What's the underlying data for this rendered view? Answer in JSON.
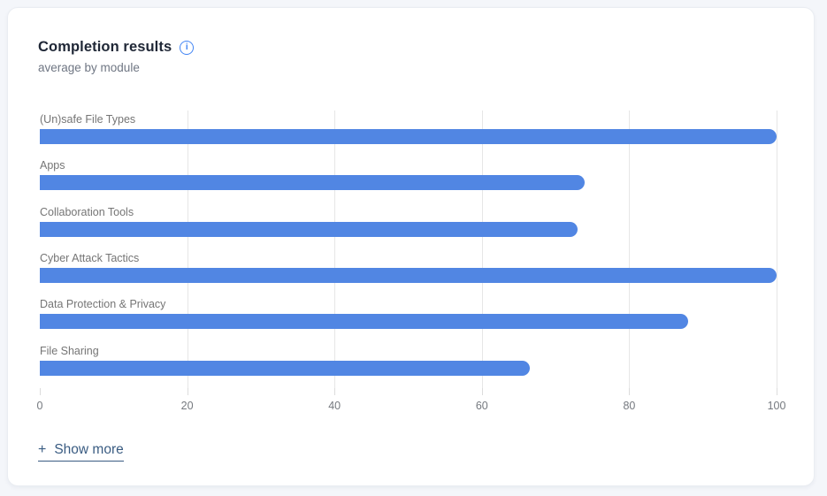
{
  "page": {
    "background": "#f4f6fa"
  },
  "card": {
    "title": "Completion results",
    "subtitle": "average by module",
    "show_more": {
      "plus": "+",
      "label": "Show more"
    }
  },
  "icons": {
    "info_glyph": "i"
  },
  "colors": {
    "bar": "#5186e3",
    "info_blue": "#4285f4",
    "show_more": "#3a5c82",
    "gridline": "#e6e6e6",
    "label_gray": "#757575"
  },
  "chart_data": {
    "type": "bar",
    "orientation": "horizontal",
    "title": "Completion results",
    "subtitle": "average by module",
    "categories": [
      "(Un)safe File Types",
      "Apps",
      "Collaboration Tools",
      "Cyber Attack Tactics",
      "Data Protection & Privacy",
      "File Sharing"
    ],
    "values": [
      100,
      74,
      73,
      100,
      88,
      66.5
    ],
    "xlabel": "",
    "ylabel": "",
    "xlim": [
      0,
      100
    ],
    "x_ticks": [
      0,
      20,
      40,
      60,
      80,
      100
    ],
    "grid": true,
    "legend": false,
    "bar_color": "#5186e3"
  }
}
